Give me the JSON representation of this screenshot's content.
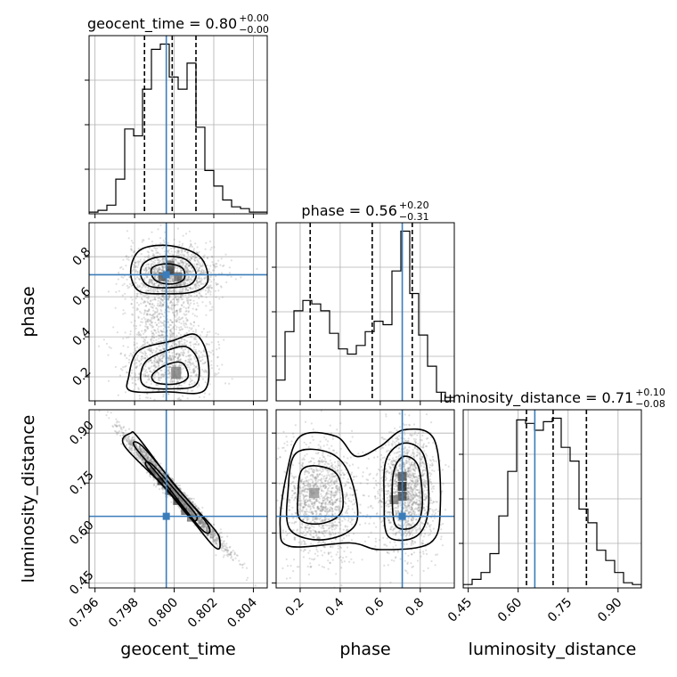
{
  "chart_data": {
    "type": "corner",
    "parameters": [
      "geocent_time",
      "phase",
      "luminosity_distance"
    ],
    "truths": [
      0.7996,
      0.71,
      0.65
    ],
    "colors": {
      "truth": "#3b7dba",
      "hist": "#000000",
      "points": "#808080",
      "grid": "#b0b0b0"
    },
    "axes": {
      "geocent_time": {
        "range": [
          0.7957,
          0.8047
        ],
        "ticks": [
          0.796,
          0.798,
          0.8,
          0.802,
          0.804
        ],
        "tick_labels": [
          "0.796",
          "0.798",
          "0.800",
          "0.802",
          "0.804"
        ],
        "label": "geocent_time"
      },
      "phase": {
        "range": [
          0.08,
          0.97
        ],
        "ticks": [
          0.2,
          0.4,
          0.6,
          0.8
        ],
        "tick_labels": [
          "0.2",
          "0.4",
          "0.6",
          "0.8"
        ],
        "label": "phase"
      },
      "luminosity_distance": {
        "range": [
          0.435,
          0.97
        ],
        "ticks": [
          0.45,
          0.6,
          0.75,
          0.9
        ],
        "tick_labels": [
          "0.45",
          "0.60",
          "0.75",
          "0.90"
        ],
        "label": "luminosity_distance"
      }
    },
    "diagonal": [
      {
        "parameter": "geocent_time",
        "title_text": "geocent_time = 0.80",
        "title_sup": "+0.00",
        "title_sub": "−0.00",
        "quantiles": [
          0.7985,
          0.7999,
          0.8011
        ],
        "bin_edges": [
          0.7957,
          0.79615,
          0.7966,
          0.79705,
          0.7975,
          0.79795,
          0.7984,
          0.79885,
          0.7993,
          0.79975,
          0.8002,
          0.80065,
          0.8011,
          0.80155,
          0.802,
          0.80245,
          0.8029,
          0.80335,
          0.8038,
          0.80425,
          0.8047
        ],
        "counts": [
          0.01,
          0.02,
          0.05,
          0.2,
          0.49,
          0.45,
          0.72,
          0.95,
          0.98,
          0.79,
          0.72,
          0.87,
          0.5,
          0.25,
          0.16,
          0.08,
          0.04,
          0.03,
          0.01,
          0.01
        ]
      },
      {
        "parameter": "phase",
        "title_text": "phase = 0.56",
        "title_sup": "+0.20",
        "title_sub": "−0.31",
        "quantiles": [
          0.25,
          0.56,
          0.76
        ],
        "bin_edges": [
          0.08,
          0.1245,
          0.169,
          0.2135,
          0.258,
          0.3025,
          0.347,
          0.3915,
          0.436,
          0.4805,
          0.525,
          0.5695,
          0.614,
          0.6585,
          0.703,
          0.7475,
          0.792,
          0.8365,
          0.881,
          0.9255,
          0.97
        ],
        "counts": [
          0.12,
          0.4,
          0.52,
          0.58,
          0.56,
          0.52,
          0.39,
          0.3,
          0.27,
          0.32,
          0.4,
          0.46,
          0.44,
          0.75,
          0.98,
          0.62,
          0.38,
          0.2,
          0.05,
          0.02
        ]
      },
      {
        "parameter": "luminosity_distance",
        "title_text": "luminosity_distance = 0.71",
        "title_sup": "+0.10",
        "title_sub": "−0.08",
        "quantiles": [
          0.625,
          0.705,
          0.805
        ],
        "bin_edges": [
          0.435,
          0.46175,
          0.4885,
          0.51525,
          0.542,
          0.56875,
          0.5955,
          0.62225,
          0.649,
          0.67575,
          0.7025,
          0.72925,
          0.756,
          0.78275,
          0.8095,
          0.83625,
          0.863,
          0.88975,
          0.9165,
          0.94325,
          0.97
        ],
        "counts": [
          0.02,
          0.05,
          0.09,
          0.2,
          0.42,
          0.68,
          0.98,
          0.96,
          0.92,
          0.97,
          0.99,
          0.82,
          0.74,
          0.46,
          0.38,
          0.22,
          0.16,
          0.09,
          0.03,
          0.02
        ]
      }
    ],
    "pairs": [
      {
        "x": "geocent_time",
        "y": "phase",
        "clusters": [
          {
            "cx": 0.7999,
            "cy": 0.71,
            "sx": 0.0011,
            "sy": 0.075,
            "n": 1400
          },
          {
            "cx": 0.7997,
            "cy": 0.28,
            "sx": 0.0011,
            "sy": 0.09,
            "n": 950
          },
          {
            "cx": 0.7994,
            "cy": 0.5,
            "sx": 0.0009,
            "sy": 0.08,
            "n": 350
          }
        ],
        "contours": [
          [
            [
              0.7978,
              0.73
            ],
            [
              0.7982,
              0.63
            ],
            [
              0.7995,
              0.615
            ],
            [
              0.801,
              0.625
            ],
            [
              0.8017,
              0.68
            ],
            [
              0.8013,
              0.8
            ],
            [
              0.7998,
              0.855
            ],
            [
              0.7983,
              0.835
            ]
          ],
          [
            [
              0.7983,
              0.71
            ],
            [
              0.7987,
              0.655
            ],
            [
              0.7997,
              0.645
            ],
            [
              0.8008,
              0.66
            ],
            [
              0.8011,
              0.72
            ],
            [
              0.8005,
              0.79
            ],
            [
              0.7993,
              0.8
            ],
            [
              0.7985,
              0.77
            ]
          ],
          [
            [
              0.7989,
              0.7
            ],
            [
              0.7993,
              0.67
            ],
            [
              0.8,
              0.665
            ],
            [
              0.8005,
              0.69
            ],
            [
              0.8004,
              0.745
            ],
            [
              0.7996,
              0.765
            ],
            [
              0.7989,
              0.745
            ]
          ],
          [
            [
              0.7977,
              0.2
            ],
            [
              0.7978,
              0.13
            ],
            [
              0.7997,
              0.125
            ],
            [
              0.8015,
              0.13
            ],
            [
              0.8017,
              0.29
            ],
            [
              0.8011,
              0.41
            ],
            [
              0.7999,
              0.38
            ],
            [
              0.7982,
              0.33
            ]
          ],
          [
            [
              0.7983,
              0.2
            ],
            [
              0.7986,
              0.15
            ],
            [
              0.7998,
              0.14
            ],
            [
              0.8011,
              0.16
            ],
            [
              0.8012,
              0.28
            ],
            [
              0.8006,
              0.35
            ],
            [
              0.7996,
              0.33
            ],
            [
              0.7986,
              0.28
            ]
          ],
          [
            [
              0.7989,
              0.21
            ],
            [
              0.7991,
              0.17
            ],
            [
              0.8001,
              0.165
            ],
            [
              0.8007,
              0.2
            ],
            [
              0.8004,
              0.27
            ],
            [
              0.7996,
              0.26
            ]
          ]
        ],
        "blocks": [
          {
            "x": 0.7998,
            "y": 0.73,
            "w": 0.0004,
            "h": 0.045,
            "shade": 0.15
          },
          {
            "x": 0.7994,
            "y": 0.7,
            "w": 0.0004,
            "h": 0.045,
            "shade": 0.3
          },
          {
            "x": 0.8002,
            "y": 0.7,
            "w": 0.0004,
            "h": 0.045,
            "shade": 0.35
          },
          {
            "x": 0.7998,
            "y": 0.76,
            "w": 0.0004,
            "h": 0.04,
            "shade": 0.4
          },
          {
            "x": 0.8001,
            "y": 0.22,
            "w": 0.0005,
            "h": 0.06,
            "shade": 0.45
          }
        ]
      },
      {
        "x": "geocent_time",
        "y": "luminosity_distance",
        "clusters": [
          {
            "cx": 0.8,
            "cy": 0.725,
            "sx": 0.0012,
            "sy": 0.08,
            "rho": -0.985,
            "n": 2600
          }
        ],
        "contours": [
          [
            [
              0.7978,
              0.9
            ],
            [
              0.7975,
              0.86
            ],
            [
              0.7998,
              0.72
            ],
            [
              0.802,
              0.56
            ],
            [
              0.8023,
              0.58
            ],
            [
              0.8019,
              0.62
            ],
            [
              0.8,
              0.745
            ],
            [
              0.7982,
              0.885
            ]
          ],
          [
            [
              0.798,
              0.86
            ],
            [
              0.7994,
              0.76
            ],
            [
              0.8014,
              0.61
            ],
            [
              0.8017,
              0.625
            ],
            [
              0.8001,
              0.74
            ],
            [
              0.7984,
              0.86
            ]
          ],
          [
            [
              0.7986,
              0.8
            ],
            [
              0.7999,
              0.71
            ],
            [
              0.8009,
              0.64
            ],
            [
              0.8011,
              0.655
            ],
            [
              0.8001,
              0.725
            ],
            [
              0.7989,
              0.805
            ]
          ]
        ],
        "blocks": [
          {
            "x": 0.7993,
            "y": 0.755,
            "w": 0.0003,
            "h": 0.022,
            "shade": 0.1
          },
          {
            "x": 0.7997,
            "y": 0.725,
            "w": 0.0003,
            "h": 0.022,
            "shade": 0.2
          },
          {
            "x": 0.8001,
            "y": 0.695,
            "w": 0.0003,
            "h": 0.022,
            "shade": 0.25
          },
          {
            "x": 0.8005,
            "y": 0.665,
            "w": 0.0003,
            "h": 0.022,
            "shade": 0.3
          },
          {
            "x": 0.7989,
            "y": 0.785,
            "w": 0.0003,
            "h": 0.022,
            "shade": 0.35
          },
          {
            "x": 0.8008,
            "y": 0.645,
            "w": 0.0003,
            "h": 0.022,
            "shade": 0.4
          }
        ]
      },
      {
        "x": "phase",
        "y": "luminosity_distance",
        "clusters": [
          {
            "cx": 0.3,
            "cy": 0.7,
            "sx": 0.09,
            "sy": 0.085,
            "n": 1300
          },
          {
            "cx": 0.73,
            "cy": 0.72,
            "sx": 0.07,
            "sy": 0.09,
            "n": 1500
          }
        ],
        "contours": [
          [
            [
              0.13,
              0.77
            ],
            [
              0.1,
              0.62
            ],
            [
              0.15,
              0.56
            ],
            [
              0.45,
              0.57
            ],
            [
              0.6,
              0.55
            ],
            [
              0.85,
              0.57
            ],
            [
              0.9,
              0.68
            ],
            [
              0.87,
              0.88
            ],
            [
              0.72,
              0.91
            ],
            [
              0.6,
              0.86
            ],
            [
              0.48,
              0.83
            ],
            [
              0.38,
              0.89
            ],
            [
              0.2,
              0.89
            ]
          ],
          [
            [
              0.14,
              0.73
            ],
            [
              0.15,
              0.61
            ],
            [
              0.32,
              0.58
            ],
            [
              0.48,
              0.63
            ],
            [
              0.45,
              0.77
            ],
            [
              0.35,
              0.84
            ],
            [
              0.18,
              0.84
            ]
          ],
          [
            [
              0.19,
              0.72
            ],
            [
              0.2,
              0.64
            ],
            [
              0.32,
              0.63
            ],
            [
              0.41,
              0.67
            ],
            [
              0.39,
              0.77
            ],
            [
              0.3,
              0.8
            ],
            [
              0.21,
              0.79
            ]
          ],
          [
            [
              0.62,
              0.7
            ],
            [
              0.64,
              0.59
            ],
            [
              0.78,
              0.59
            ],
            [
              0.84,
              0.67
            ],
            [
              0.82,
              0.83
            ],
            [
              0.72,
              0.87
            ],
            [
              0.63,
              0.82
            ]
          ],
          [
            [
              0.66,
              0.7
            ],
            [
              0.68,
              0.62
            ],
            [
              0.77,
              0.62
            ],
            [
              0.81,
              0.68
            ],
            [
              0.79,
              0.8
            ],
            [
              0.72,
              0.83
            ],
            [
              0.67,
              0.79
            ]
          ]
        ],
        "blocks": [
          {
            "x": 0.71,
            "y": 0.74,
            "w": 0.044,
            "h": 0.027,
            "shade": 0.05
          },
          {
            "x": 0.71,
            "y": 0.71,
            "w": 0.044,
            "h": 0.027,
            "shade": 0.2
          },
          {
            "x": 0.71,
            "y": 0.77,
            "w": 0.044,
            "h": 0.027,
            "shade": 0.25
          },
          {
            "x": 0.67,
            "y": 0.7,
            "w": 0.044,
            "h": 0.027,
            "shade": 0.45
          },
          {
            "x": 0.27,
            "y": 0.72,
            "w": 0.05,
            "h": 0.03,
            "shade": 0.55
          }
        ]
      }
    ]
  }
}
